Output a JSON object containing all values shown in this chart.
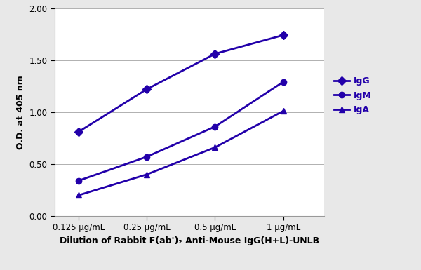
{
  "x_labels": [
    "0.125 μg/mL",
    "0.25 μg/mL",
    "0.5 μg/mL",
    "1 μg/mL"
  ],
  "x_positions": [
    0,
    1,
    2,
    3
  ],
  "IgG": [
    0.81,
    1.22,
    1.56,
    1.74
  ],
  "IgM": [
    0.34,
    0.57,
    0.86,
    1.29
  ],
  "IgA": [
    0.2,
    0.4,
    0.66,
    1.01
  ],
  "color": "#2200AA",
  "IgG_marker": "D",
  "IgM_marker": "o",
  "IgA_marker": "^",
  "ylabel": "O.D. at 405 nm",
  "xlabel": "Dilution of Rabbit F(ab')₂ Anti-Mouse IgG(H+L)-UNLB",
  "ylim": [
    0.0,
    2.0
  ],
  "yticks": [
    0.0,
    0.5,
    1.0,
    1.5,
    2.0
  ],
  "axis_fontsize": 9,
  "legend_fontsize": 9,
  "tick_fontsize": 8.5,
  "linewidth": 2.0,
  "markersize": 6,
  "figure_bg": "#e8e8e8",
  "plot_bg": "#ffffff"
}
